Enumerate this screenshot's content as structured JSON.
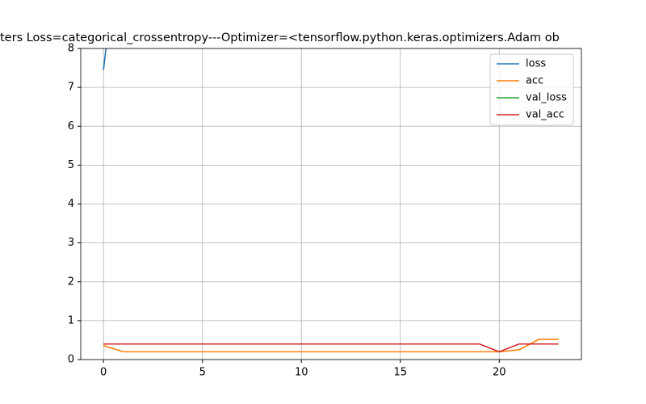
{
  "chart_data": {
    "type": "line",
    "title": "ters  Loss=categorical_crossentropy---Optimizer=<tensorflow.python.keras.optimizers.Adam ob",
    "x": [
      0,
      1,
      2,
      3,
      4,
      5,
      6,
      7,
      8,
      9,
      10,
      11,
      12,
      13,
      14,
      15,
      16,
      17,
      18,
      19,
      20,
      21,
      22,
      23
    ],
    "series": [
      {
        "name": "loss",
        "color": "#1f77b4",
        "values": [
          7.45,
          11.9,
          null,
          null,
          null,
          null,
          null,
          null,
          null,
          null,
          null,
          null,
          null,
          null,
          null,
          null,
          null,
          null,
          null,
          null,
          null,
          null,
          null,
          null
        ]
      },
      {
        "name": "acc",
        "color": "#ff7f0e",
        "values": [
          0.36,
          0.2,
          0.2,
          0.2,
          0.2,
          0.2,
          0.2,
          0.2,
          0.2,
          0.2,
          0.2,
          0.2,
          0.2,
          0.2,
          0.2,
          0.2,
          0.2,
          0.2,
          0.2,
          0.2,
          0.2,
          0.25,
          0.52,
          0.52
        ]
      },
      {
        "name": "val_loss",
        "color": "#2ca02c",
        "values": [
          null,
          null,
          null,
          null,
          null,
          null,
          null,
          null,
          null,
          null,
          null,
          null,
          null,
          null,
          null,
          null,
          null,
          null,
          null,
          null,
          null,
          null,
          null,
          null
        ]
      },
      {
        "name": "val_acc",
        "color": "#d62728",
        "values": [
          0.4,
          0.4,
          0.4,
          0.4,
          0.4,
          0.4,
          0.4,
          0.4,
          0.4,
          0.4,
          0.4,
          0.4,
          0.4,
          0.4,
          0.4,
          0.4,
          0.4,
          0.4,
          0.4,
          0.4,
          0.2,
          0.4,
          0.4,
          0.4
        ]
      }
    ],
    "xlim": [
      -1.15,
      24.15
    ],
    "ylim": [
      0,
      8
    ],
    "xticks": [
      0,
      5,
      10,
      15,
      20
    ],
    "yticks": [
      0,
      1,
      2,
      3,
      4,
      5,
      6,
      7,
      8
    ],
    "grid": true,
    "legend": "upper right"
  }
}
